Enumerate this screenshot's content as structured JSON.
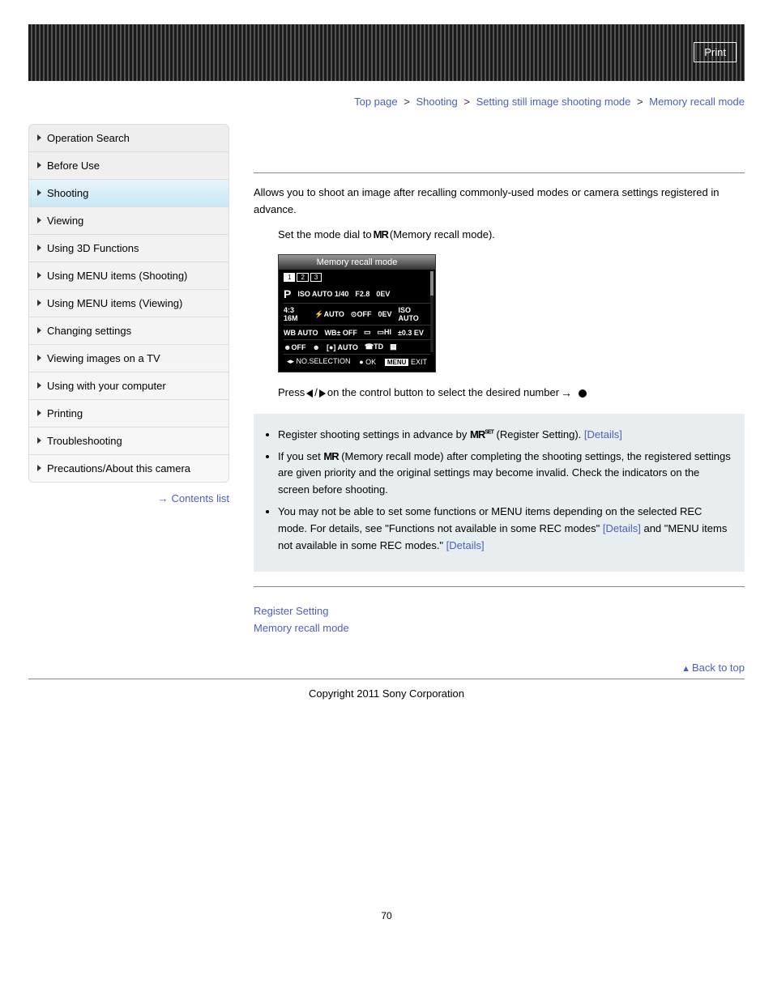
{
  "header": {
    "print": "Print"
  },
  "breadcrumb": {
    "items": [
      "Top page",
      "Shooting",
      "Setting still image shooting mode",
      "Memory recall mode"
    ]
  },
  "sidebar": {
    "items": [
      {
        "label": "Operation Search",
        "active": false
      },
      {
        "label": "Before Use",
        "active": false
      },
      {
        "label": "Shooting",
        "active": true
      },
      {
        "label": "Viewing",
        "active": false
      },
      {
        "label": "Using 3D Functions",
        "active": false
      },
      {
        "label": "Using MENU items (Shooting)",
        "active": false
      },
      {
        "label": "Using MENU items (Viewing)",
        "active": false
      },
      {
        "label": "Changing settings",
        "active": false
      },
      {
        "label": "Viewing images on a TV",
        "active": false
      },
      {
        "label": "Using with your computer",
        "active": false
      },
      {
        "label": "Printing",
        "active": false
      },
      {
        "label": "Troubleshooting",
        "active": false
      },
      {
        "label": "Precautions/About this camera",
        "active": false
      }
    ],
    "contents_link": "Contents list"
  },
  "main": {
    "intro": "Allows you to shoot an image after recalling commonly-used modes or camera settings registered in advance.",
    "step1_a": "Set the mode dial to ",
    "step1_b": "(Memory recall mode).",
    "step2_a": "Press ",
    "step2_b": " / ",
    "step2_c": " on the control button to select the desired number ",
    "lcd": {
      "title": "Memory recall mode",
      "tabs": [
        "1",
        "2",
        "3"
      ],
      "row1": [
        "P",
        "ISO AUTO 1/40",
        "F2.8",
        "0EV"
      ],
      "row2": [
        "4:3 16M",
        "⚡AUTO",
        "⊙OFF",
        "0EV",
        "ISO AUTO"
      ],
      "row3": [
        "WB AUTO",
        "WB± OFF",
        "▭",
        "▭HI",
        "±0.3 EV"
      ],
      "row4": [
        "☻OFF",
        "☻",
        "[●] AUTO",
        "☎TD",
        "▦"
      ],
      "footer_left": "◂▸ NO.SELECTION",
      "footer_ok": "● OK",
      "footer_menu": "MENU",
      "footer_exit": "EXIT"
    },
    "notes": {
      "n1_a": "Register shooting settings in advance by ",
      "n1_b": "(Register Setting). ",
      "n1_link": "[Details]",
      "n2_a": "If you set ",
      "n2_b": "(Memory recall mode) after completing the shooting settings, the registered settings are given priority and the original settings may become invalid. Check the indicators on the screen before shooting.",
      "n3_a": "You may not be able to set some functions or MENU items depending on the selected REC mode. For details, see \"Functions not available in some REC modes\" ",
      "n3_link1": "[Details]",
      "n3_b": " and \"MENU items not available in some REC modes.\" ",
      "n3_link2": "[Details]"
    },
    "related": {
      "r1": "Register Setting",
      "r2": "Memory recall mode"
    },
    "back_top": "Back to top",
    "copyright": "Copyright 2011 Sony Corporation",
    "page_num": "70"
  }
}
